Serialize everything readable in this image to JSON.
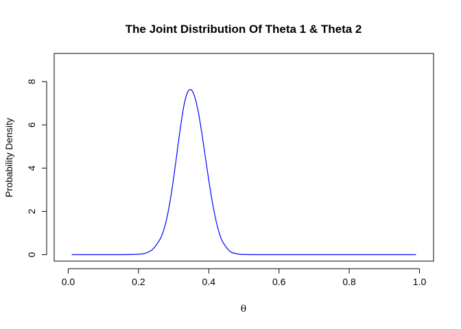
{
  "chart_data": {
    "type": "line",
    "title": "The Joint Distribution Of Theta 1 & Theta 2",
    "xlabel": "θ",
    "ylabel": "Probability Density",
    "xlim": [
      -0.04,
      1.04
    ],
    "ylim": [
      -0.3,
      9.3
    ],
    "x_ticks": [
      0.0,
      0.2,
      0.4,
      0.6,
      0.8,
      1.0
    ],
    "x_tick_labels": [
      "0.0",
      "0.2",
      "0.4",
      "0.6",
      "0.8",
      "1.0"
    ],
    "y_ticks": [
      0,
      2,
      4,
      6,
      8
    ],
    "y_tick_labels": [
      "0",
      "2",
      "4",
      "6",
      "8"
    ],
    "grid": false,
    "legend": "none",
    "color": "#0000ff",
    "series": [
      {
        "x": [
          0.01,
          0.05,
          0.1,
          0.15,
          0.2,
          0.22,
          0.24,
          0.26,
          0.27,
          0.28,
          0.29,
          0.3,
          0.31,
          0.32,
          0.33,
          0.34,
          0.35,
          0.36,
          0.37,
          0.38,
          0.39,
          0.4,
          0.41,
          0.42,
          0.43,
          0.44,
          0.46,
          0.48,
          0.5,
          0.55,
          0.6,
          0.7,
          0.8,
          0.9,
          0.99
        ],
        "values": [
          0.0,
          0.0,
          0.0,
          0.0,
          0.02,
          0.07,
          0.24,
          0.68,
          1.05,
          1.64,
          2.48,
          3.54,
          4.75,
          5.95,
          6.95,
          7.52,
          7.62,
          7.3,
          6.62,
          5.65,
          4.55,
          3.45,
          2.45,
          1.62,
          1.0,
          0.58,
          0.16,
          0.04,
          0.01,
          0.0,
          0.0,
          0.0,
          0.0,
          0.0,
          0.0
        ]
      }
    ]
  }
}
